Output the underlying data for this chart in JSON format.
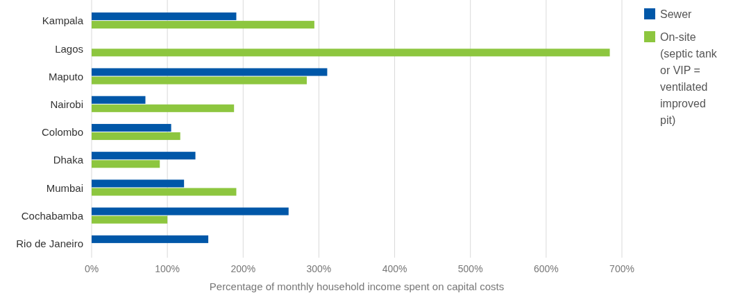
{
  "chart_data": {
    "type": "bar",
    "orientation": "horizontal",
    "xlabel": "Percentage of monthly household income spent on capital costs",
    "categories": [
      "Kampala",
      "Lagos",
      "Maputo",
      "Nairobi",
      "Colombo",
      "Dhaka",
      "Mumbai",
      "Cochabamba",
      "Rio de Janeiro"
    ],
    "series": [
      {
        "name": "Sewer",
        "color": "#0057a8",
        "values": [
          191,
          null,
          311,
          71,
          105,
          137,
          122,
          260,
          154
        ]
      },
      {
        "name": "On-site (septic tank or VIP = ventilated improved pit)",
        "color": "#8dc63f",
        "values": [
          294,
          684,
          284,
          188,
          117,
          90,
          191,
          100,
          null
        ]
      }
    ],
    "xlim": [
      0,
      700
    ],
    "xticks": [
      {
        "value": 0,
        "label": "0%"
      },
      {
        "value": 100,
        "label": "100%"
      },
      {
        "value": 200,
        "label": "200%"
      },
      {
        "value": 300,
        "label": "300%"
      },
      {
        "value": 400,
        "label": "400%"
      },
      {
        "value": 500,
        "label": "500%"
      },
      {
        "value": 600,
        "label": "600%"
      },
      {
        "value": 700,
        "label": "700%"
      }
    ],
    "grid": "x",
    "legend": "top right"
  }
}
